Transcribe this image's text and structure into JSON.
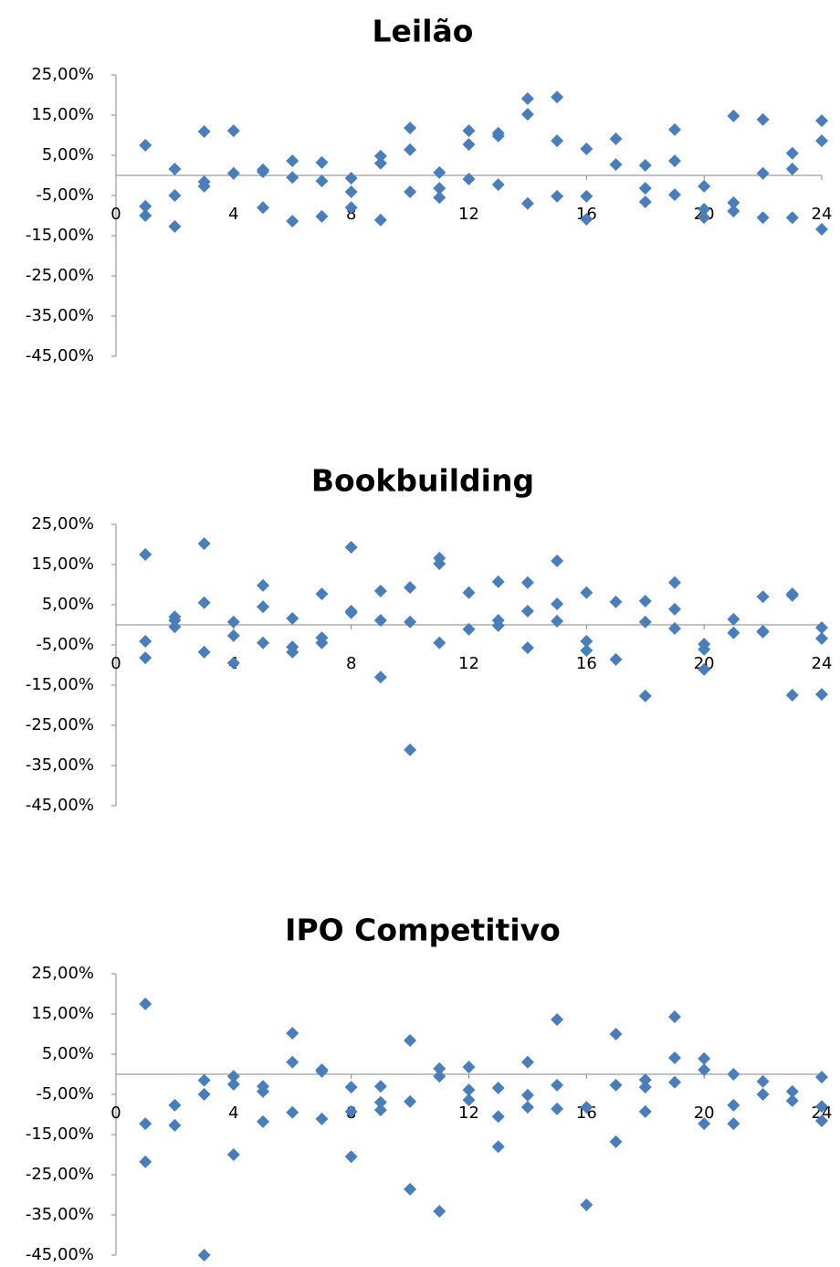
{
  "chart_data": [
    {
      "type": "scatter",
      "title": "Leilão",
      "color": "#4a7ebb",
      "x": [
        1,
        1,
        1,
        2,
        2,
        2,
        3,
        3,
        3,
        4,
        4,
        5,
        5,
        5,
        6,
        6,
        6,
        7,
        7,
        7,
        8,
        8,
        8,
        9,
        9,
        9,
        10,
        10,
        10,
        11,
        11,
        11,
        12,
        12,
        12,
        13,
        13,
        13,
        14,
        14,
        14,
        15,
        15,
        15,
        16,
        16,
        16,
        17,
        17,
        18,
        18,
        18,
        19,
        19,
        19,
        20,
        20,
        20,
        21,
        21,
        21,
        22,
        22,
        22,
        23,
        23,
        23,
        24,
        24,
        24
      ],
      "values": [
        7.5,
        -7.7,
        -10,
        1.6,
        -5,
        -12.7,
        10.9,
        -1.6,
        -2.7,
        11.1,
        0.5,
        1.4,
        0.9,
        -8,
        3.6,
        -0.5,
        -11.4,
        3.2,
        -1.4,
        -10.2,
        -0.7,
        -4.1,
        -8,
        4.8,
        3,
        -11.1,
        11.8,
        6.4,
        -4.1,
        0.7,
        -3.2,
        -5.5,
        11.1,
        7.7,
        -0.9,
        10.5,
        9.8,
        -2.3,
        19.1,
        15.2,
        -7,
        19.5,
        8.6,
        -5.2,
        6.6,
        -5.2,
        -10.9,
        9.1,
        2.7,
        2.5,
        -3.2,
        -6.6,
        11.4,
        3.6,
        -4.8,
        -2.7,
        -8.4,
        -10.5,
        14.8,
        -6.8,
        -8.9,
        13.9,
        0.5,
        -10.5,
        5.5,
        1.6,
        -10.5,
        13.6,
        8.6,
        -13.4
      ],
      "xlim": [
        0,
        24
      ],
      "xticks": [
        0,
        4,
        8,
        12,
        16,
        20,
        24
      ],
      "ylim": [
        -45,
        25
      ],
      "yticks": [
        {
          "value": 25,
          "label": "25,00%"
        },
        {
          "value": 15,
          "label": "15,00%"
        },
        {
          "value": 5,
          "label": "5,00%"
        },
        {
          "value": -5,
          "label": "-5,00%"
        },
        {
          "value": -15,
          "label": "-15,00%"
        },
        {
          "value": -25,
          "label": "-25,00%"
        },
        {
          "value": -35,
          "label": "-35,00%"
        },
        {
          "value": -45,
          "label": "-45,00%"
        }
      ]
    },
    {
      "type": "scatter",
      "title": "Bookbuilding",
      "color": "#4a7ebb",
      "x": [
        1,
        1,
        1,
        2,
        2,
        2,
        3,
        3,
        3,
        4,
        4,
        4,
        5,
        5,
        5,
        6,
        6,
        6,
        7,
        7,
        7,
        8,
        8,
        8,
        9,
        9,
        9,
        10,
        10,
        10,
        11,
        11,
        11,
        12,
        12,
        13,
        13,
        13,
        14,
        14,
        14,
        15,
        15,
        15,
        16,
        16,
        16,
        17,
        17,
        18,
        18,
        18,
        19,
        19,
        19,
        20,
        20,
        20,
        21,
        21,
        22,
        22,
        22,
        23,
        23,
        23,
        24,
        24,
        24
      ],
      "values": [
        17.5,
        -4.1,
        -8.2,
        2,
        1.1,
        -0.5,
        20.2,
        5.5,
        -6.8,
        0.7,
        -2.7,
        -9.5,
        9.8,
        4.5,
        -4.5,
        1.6,
        -5.5,
        -6.8,
        7.7,
        -3.2,
        -4.5,
        19.3,
        3.4,
        3,
        8.4,
        1.1,
        -13,
        9.3,
        0.7,
        -31.1,
        16.6,
        15.2,
        -4.5,
        8,
        -1.1,
        10.7,
        1.1,
        -0.2,
        10.5,
        3.4,
        -5.7,
        15.9,
        5.2,
        0.9,
        8,
        -4.1,
        -6.4,
        5.7,
        -8.6,
        5.9,
        0.7,
        -17.7,
        10.5,
        3.9,
        -0.9,
        -4.8,
        -6.1,
        -11.1,
        1.4,
        -2,
        7,
        -1.6,
        -1.8,
        7.7,
        7.3,
        -17.5,
        -0.7,
        -3.4,
        -17.3
      ],
      "xlim": [
        0,
        24
      ],
      "xticks": [
        0,
        4,
        8,
        12,
        16,
        20,
        24
      ],
      "ylim": [
        -45,
        25
      ],
      "yticks": [
        {
          "value": 25,
          "label": "25,00%"
        },
        {
          "value": 15,
          "label": "15,00%"
        },
        {
          "value": 5,
          "label": "5,00%"
        },
        {
          "value": -5,
          "label": "-5,00%"
        },
        {
          "value": -15,
          "label": "-15,00%"
        },
        {
          "value": -25,
          "label": "-25,00%"
        },
        {
          "value": -35,
          "label": "-35,00%"
        },
        {
          "value": -45,
          "label": "-45,00%"
        }
      ]
    },
    {
      "type": "scatter",
      "title": "IPO Competitivo",
      "color": "#4a7ebb",
      "x": [
        1,
        1,
        1,
        2,
        2,
        3,
        3,
        3,
        4,
        4,
        4,
        5,
        5,
        5,
        6,
        6,
        6,
        7,
        7,
        7,
        8,
        8,
        8,
        9,
        9,
        9,
        10,
        10,
        10,
        11,
        11,
        11,
        12,
        12,
        12,
        13,
        13,
        13,
        14,
        14,
        14,
        15,
        15,
        15,
        16,
        16,
        17,
        17,
        17,
        18,
        18,
        18,
        19,
        19,
        19,
        20,
        20,
        20,
        21,
        21,
        21,
        22,
        22,
        23,
        23,
        24,
        24,
        24
      ],
      "values": [
        17.5,
        -12.3,
        -21.8,
        -7.7,
        -12.7,
        -1.5,
        -5,
        -45,
        -0.5,
        -2.5,
        -20,
        -3,
        -4.3,
        -11.8,
        10.2,
        3,
        -9.5,
        1.1,
        0.7,
        -11.1,
        -3.2,
        -9.3,
        -20.5,
        -3,
        -7,
        -8.9,
        8.4,
        -6.8,
        -28.6,
        1.4,
        -0.5,
        -34.1,
        1.8,
        -3.9,
        -6.4,
        -3.4,
        -10.5,
        -18,
        3,
        -5.2,
        -8.2,
        13.6,
        -2.7,
        -8.6,
        -8.2,
        -32.5,
        10,
        -2.7,
        -16.8,
        -1.4,
        -3.2,
        -9.3,
        14.3,
        4.1,
        -2,
        3.9,
        1.1,
        -12.3,
        0,
        -7.7,
        -12.3,
        -1.8,
        -5,
        -4.3,
        -6.6,
        -0.7,
        -8,
        -11.6
      ],
      "xlim": [
        0,
        24
      ],
      "xticks": [
        0,
        4,
        8,
        12,
        16,
        20,
        24
      ],
      "ylim": [
        -45,
        25
      ],
      "yticks": [
        {
          "value": 25,
          "label": "25,00%"
        },
        {
          "value": 15,
          "label": "15,00%"
        },
        {
          "value": 5,
          "label": "5,00%"
        },
        {
          "value": -5,
          "label": "-5,00%"
        },
        {
          "value": -15,
          "label": "-15,00%"
        },
        {
          "value": -25,
          "label": "-25,00%"
        },
        {
          "value": -35,
          "label": "-35,00%"
        },
        {
          "value": -45,
          "label": "-45,00%"
        }
      ]
    }
  ]
}
